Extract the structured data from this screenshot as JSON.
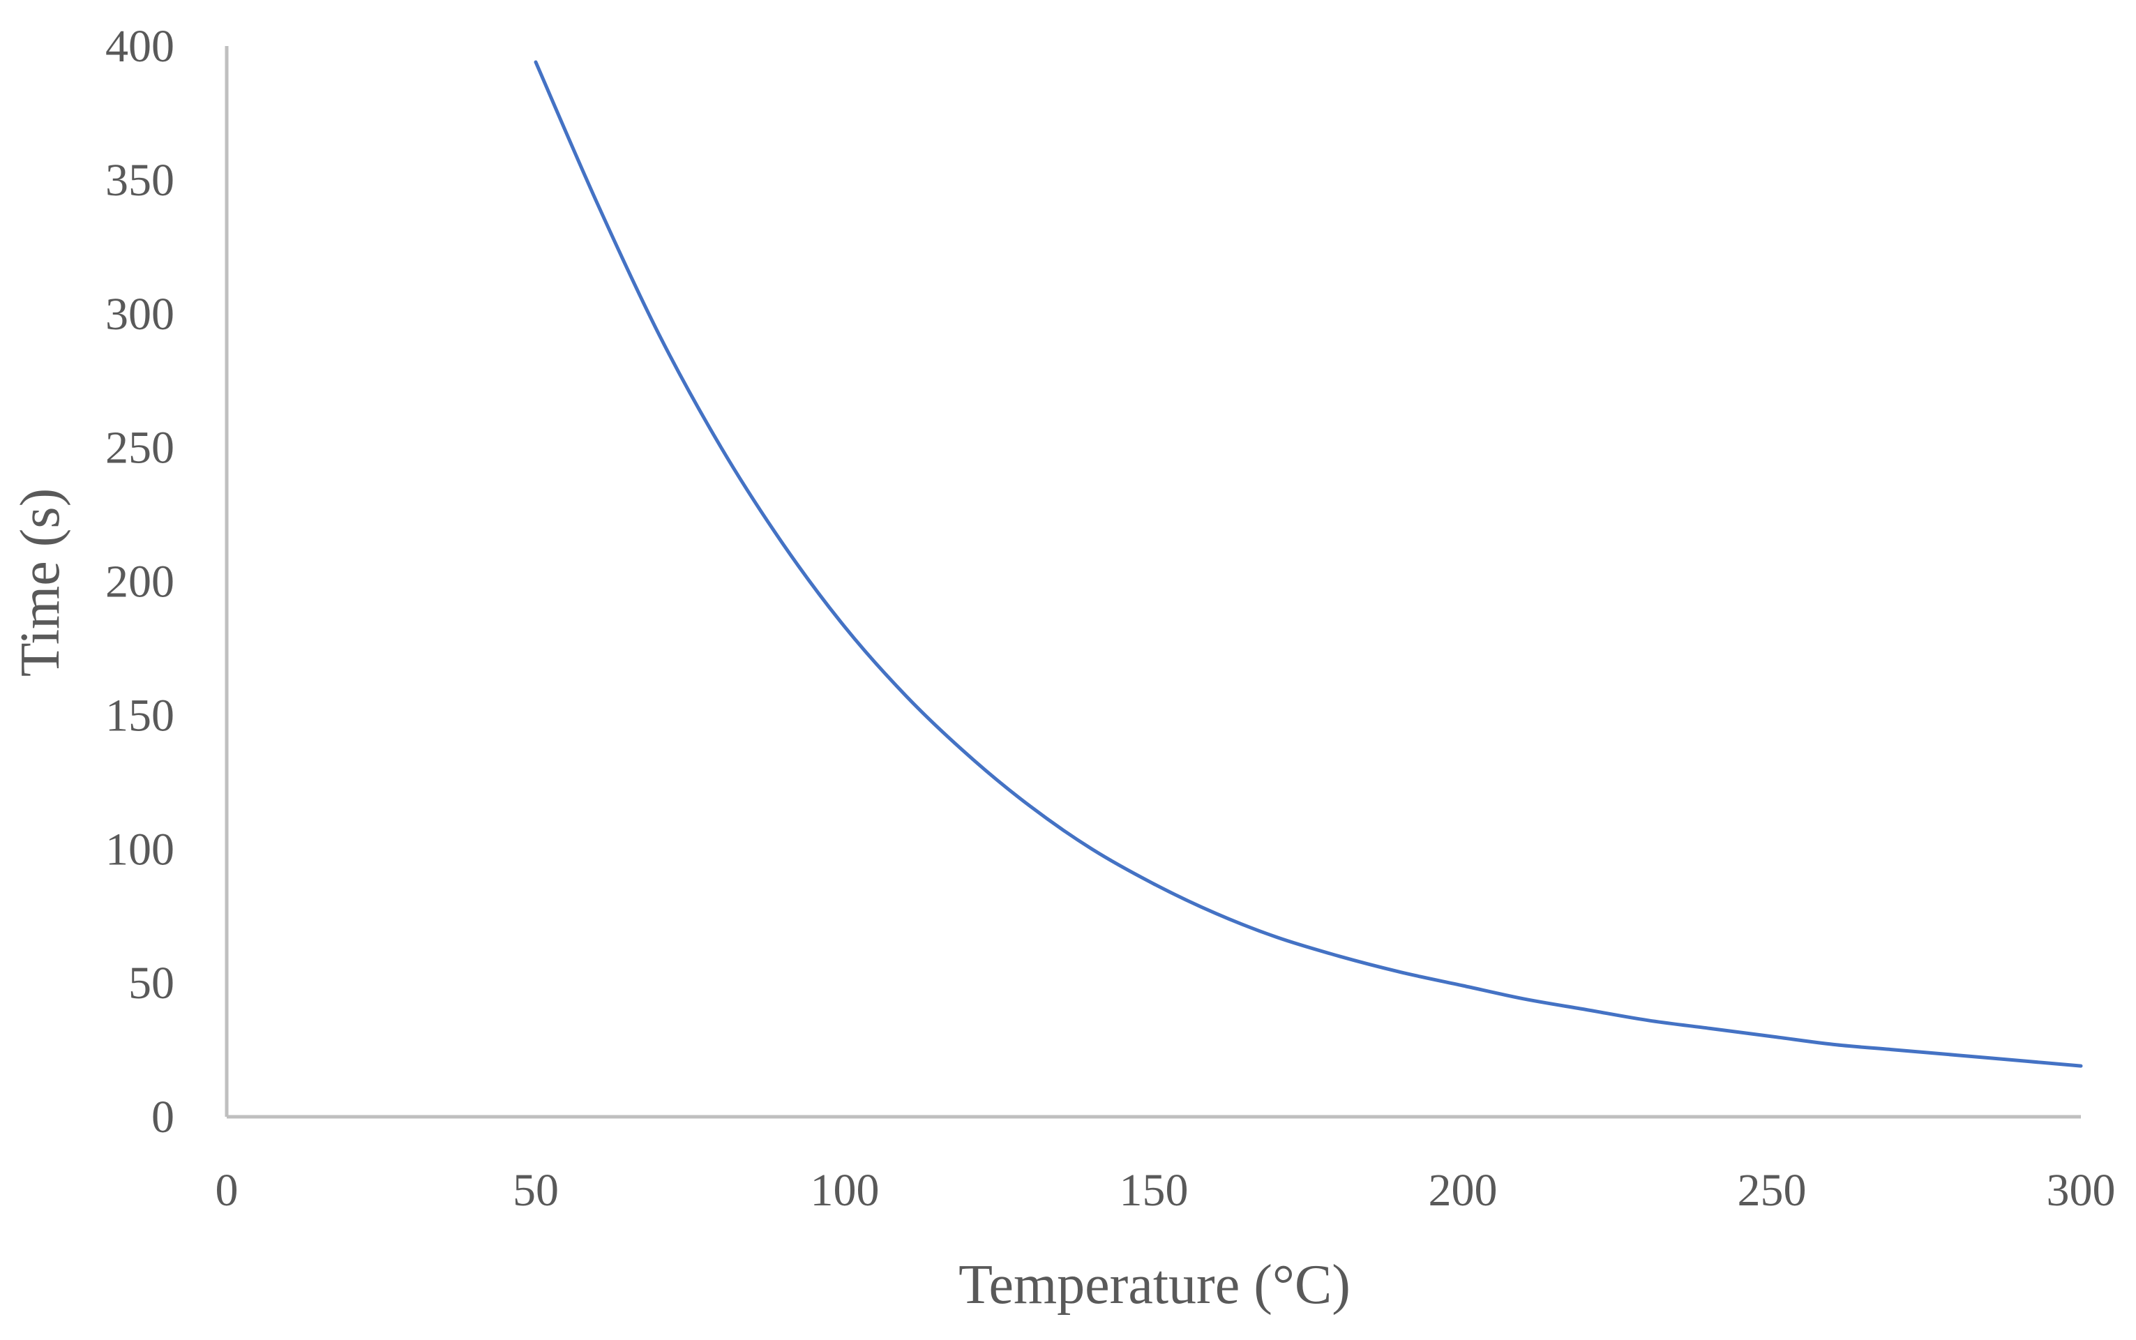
{
  "chart_data": {
    "type": "line",
    "title": "",
    "xlabel": "Temperature (°C)",
    "ylabel": "Time (s)",
    "xlim": [
      0,
      300
    ],
    "ylim": [
      0,
      400
    ],
    "x_ticks": [
      "0",
      "50",
      "100",
      "150",
      "200",
      "250",
      "300"
    ],
    "y_ticks": [
      "0",
      "50",
      "100",
      "150",
      "200",
      "250",
      "300",
      "350",
      "400"
    ],
    "grid": false,
    "legend": "none",
    "colors": {
      "line": "#4472C4",
      "axis": "#BFBFBF",
      "text": "#595959"
    },
    "series": [
      {
        "x": [
          50,
          60,
          70,
          80,
          90,
          100,
          110,
          120,
          130,
          140,
          150,
          160,
          170,
          180,
          190,
          200,
          210,
          220,
          230,
          240,
          250,
          260,
          270,
          280,
          290,
          300
        ],
        "values": [
          394,
          341,
          292,
          250,
          214,
          183,
          157,
          135,
          116,
          100,
          87,
          76,
          67,
          60,
          54,
          49,
          44,
          40,
          36,
          33,
          30,
          27,
          25,
          23,
          21,
          19
        ]
      }
    ]
  }
}
